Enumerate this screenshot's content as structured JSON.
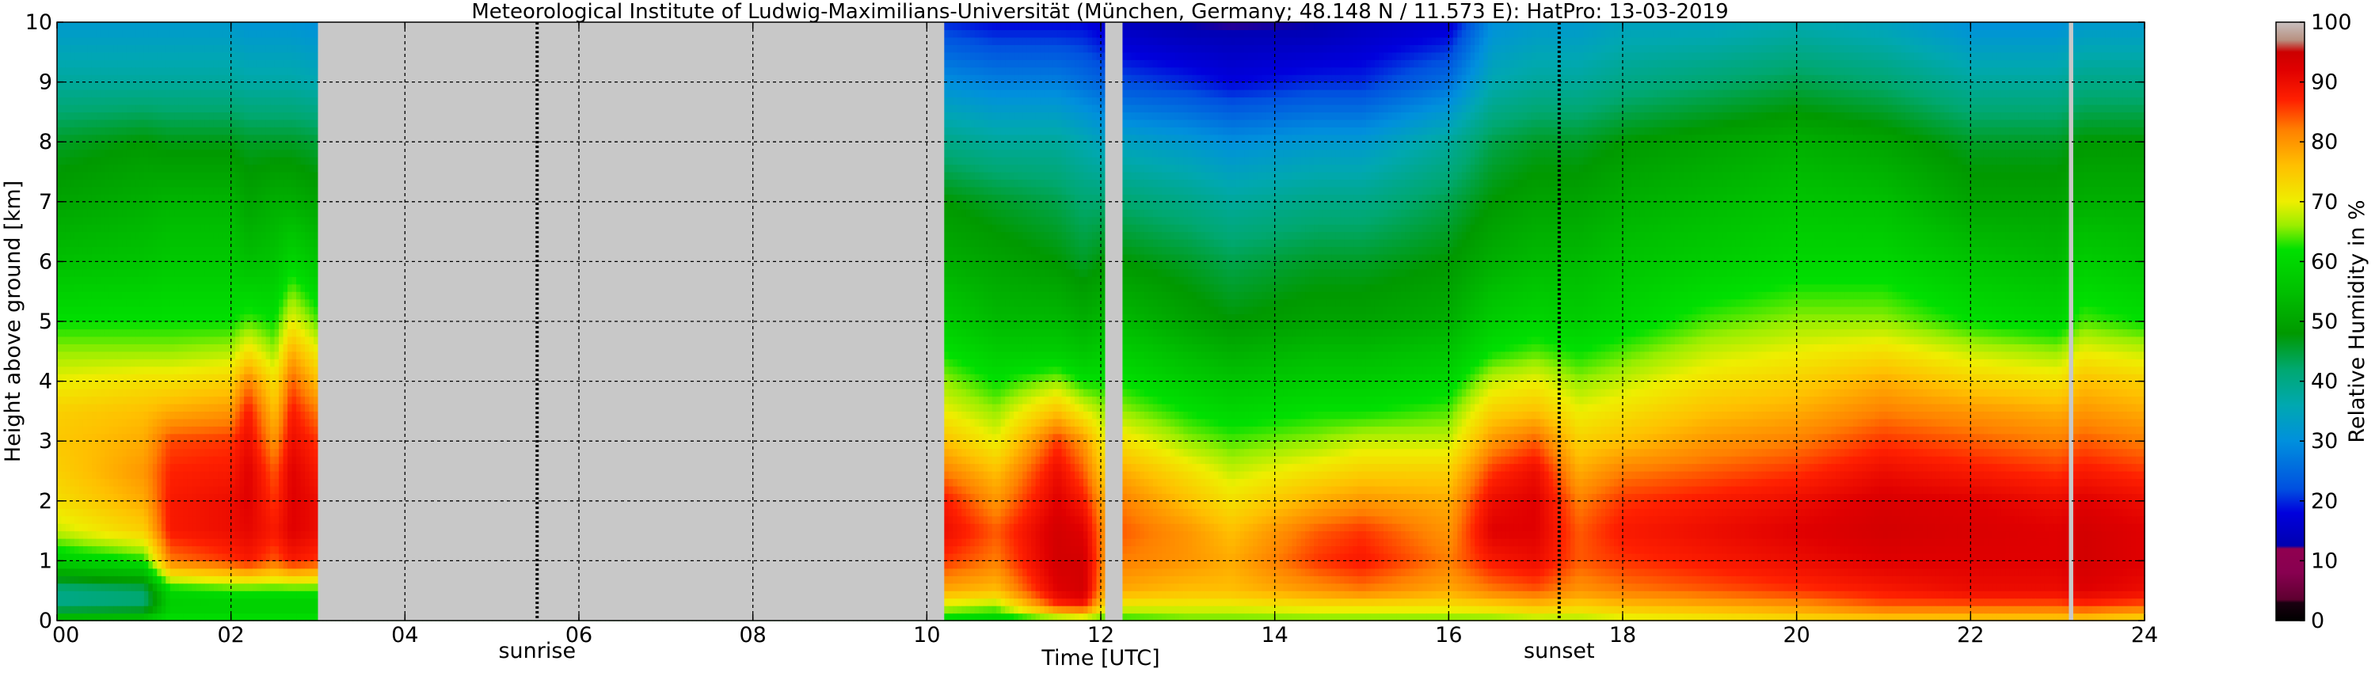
{
  "chart_data": [
    {
      "type": "heatmap",
      "title": "Meteorological Institute of Ludwig-Maximilians-Universität (München, Germany; 48.148 N / 11.573 E):    HatPro: 13-03-2019",
      "xlabel": "Time [UTC]",
      "ylabel": "Height above ground [km]",
      "xlim": [
        0,
        24
      ],
      "ylim": [
        0,
        10
      ],
      "x_ticks": [
        0,
        2,
        4,
        6,
        8,
        10,
        12,
        14,
        16,
        18,
        20,
        22,
        24
      ],
      "x_tick_labels": [
        "00",
        "02",
        "04",
        "06",
        "08",
        "10",
        "12",
        "14",
        "16",
        "18",
        "20",
        "22",
        "24"
      ],
      "y_ticks": [
        0,
        1,
        2,
        3,
        4,
        5,
        6,
        7,
        8,
        9,
        10
      ],
      "y_tick_labels": [
        "0",
        "1",
        "2",
        "3",
        "4",
        "5",
        "6",
        "7",
        "8",
        "9",
        "10"
      ],
      "grid": true,
      "annotations": [
        {
          "text": "sunrise",
          "x": 5.52
        },
        {
          "text": "sunset",
          "x": 17.27
        }
      ],
      "missing_data_color": "#c8c8c8",
      "missing_intervals": [
        [
          3.0,
          10.2
        ],
        [
          12.05,
          12.25
        ],
        [
          23.13,
          23.18
        ]
      ],
      "height_levels_km": [
        0,
        0.25,
        0.5,
        1,
        1.5,
        2,
        2.5,
        3,
        3.5,
        4,
        4.5,
        5,
        6,
        7,
        8,
        9,
        10
      ],
      "profiles": [
        {
          "x": 0.0,
          "rh": [
            58,
            40,
            40,
            58,
            68,
            72,
            74,
            75,
            74,
            70,
            66,
            62,
            55,
            50,
            46,
            38,
            32
          ]
        },
        {
          "x": 1.0,
          "rh": [
            58,
            42,
            42,
            62,
            74,
            78,
            80,
            78,
            76,
            72,
            66,
            62,
            56,
            52,
            48,
            38,
            32
          ]
        },
        {
          "x": 1.3,
          "rh": [
            62,
            58,
            60,
            82,
            88,
            88,
            87,
            85,
            78,
            72,
            66,
            62,
            57,
            53,
            47,
            38,
            32
          ]
        },
        {
          "x": 2.0,
          "rh": [
            62,
            58,
            62,
            86,
            90,
            90,
            88,
            86,
            80,
            74,
            67,
            62,
            57,
            53,
            47,
            38,
            32
          ]
        },
        {
          "x": 2.2,
          "rh": [
            62,
            58,
            62,
            88,
            91,
            92,
            92,
            90,
            88,
            82,
            72,
            64,
            55,
            50,
            46,
            37,
            31
          ]
        },
        {
          "x": 2.5,
          "rh": [
            62,
            58,
            62,
            84,
            88,
            86,
            84,
            80,
            76,
            72,
            66,
            62,
            56,
            52,
            46,
            37,
            31
          ]
        },
        {
          "x": 2.7,
          "rh": [
            62,
            58,
            62,
            88,
            92,
            92,
            92,
            90,
            88,
            84,
            78,
            70,
            60,
            52,
            46,
            37,
            31
          ]
        },
        {
          "x": 3.0,
          "rh": [
            62,
            58,
            62,
            86,
            90,
            90,
            88,
            86,
            82,
            76,
            70,
            64,
            56,
            50,
            45,
            36,
            30
          ]
        },
        {
          "x": 10.2,
          "rh": [
            60,
            68,
            78,
            86,
            90,
            88,
            82,
            76,
            70,
            66,
            62,
            58,
            52,
            48,
            40,
            30,
            20
          ]
        },
        {
          "x": 10.8,
          "rh": [
            58,
            66,
            76,
            82,
            84,
            80,
            76,
            70,
            66,
            62,
            58,
            54,
            50,
            46,
            38,
            28,
            18
          ]
        },
        {
          "x": 11.5,
          "rh": [
            62,
            86,
            92,
            94,
            94,
            92,
            90,
            86,
            76,
            66,
            58,
            54,
            48,
            44,
            38,
            28,
            18
          ]
        },
        {
          "x": 11.8,
          "rh": [
            64,
            88,
            94,
            94,
            92,
            88,
            84,
            80,
            70,
            62,
            56,
            52,
            46,
            42,
            36,
            26,
            18
          ]
        },
        {
          "x": 12.05,
          "rh": [
            62,
            72,
            78,
            80,
            80,
            78,
            74,
            70,
            66,
            62,
            58,
            54,
            48,
            42,
            34,
            24,
            16
          ]
        },
        {
          "x": 12.25,
          "rh": [
            62,
            70,
            78,
            82,
            84,
            82,
            78,
            72,
            66,
            62,
            58,
            54,
            48,
            42,
            34,
            22,
            14
          ]
        },
        {
          "x": 13.0,
          "rh": [
            64,
            70,
            76,
            80,
            80,
            76,
            72,
            66,
            62,
            58,
            54,
            50,
            46,
            40,
            32,
            20,
            12
          ]
        },
        {
          "x": 13.5,
          "rh": [
            64,
            70,
            76,
            78,
            76,
            72,
            68,
            64,
            60,
            56,
            52,
            48,
            44,
            38,
            30,
            18,
            12
          ]
        },
        {
          "x": 14.5,
          "rh": [
            64,
            72,
            80,
            86,
            84,
            78,
            72,
            66,
            62,
            58,
            54,
            50,
            46,
            40,
            32,
            20,
            12
          ]
        },
        {
          "x": 15.0,
          "rh": [
            64,
            72,
            82,
            88,
            86,
            80,
            74,
            68,
            62,
            58,
            54,
            50,
            46,
            40,
            32,
            20,
            14
          ]
        },
        {
          "x": 16.0,
          "rh": [
            64,
            72,
            78,
            82,
            80,
            78,
            74,
            68,
            64,
            60,
            56,
            52,
            48,
            44,
            38,
            26,
            16
          ]
        },
        {
          "x": 16.5,
          "rh": [
            64,
            74,
            82,
            88,
            92,
            90,
            86,
            80,
            74,
            68,
            62,
            58,
            52,
            48,
            44,
            36,
            30
          ]
        },
        {
          "x": 17.0,
          "rh": [
            66,
            76,
            84,
            90,
            92,
            92,
            90,
            84,
            76,
            70,
            64,
            60,
            54,
            50,
            46,
            38,
            32
          ]
        },
        {
          "x": 17.5,
          "rh": [
            66,
            74,
            80,
            84,
            84,
            82,
            78,
            74,
            70,
            66,
            62,
            58,
            54,
            50,
            46,
            38,
            32
          ]
        },
        {
          "x": 18.0,
          "rh": [
            68,
            76,
            82,
            86,
            88,
            86,
            82,
            76,
            72,
            68,
            64,
            60,
            56,
            52,
            48,
            40,
            34
          ]
        },
        {
          "x": 19.0,
          "rh": [
            70,
            78,
            84,
            88,
            90,
            88,
            84,
            80,
            76,
            72,
            68,
            64,
            58,
            54,
            50,
            42,
            34
          ]
        },
        {
          "x": 20.0,
          "rh": [
            72,
            80,
            86,
            90,
            92,
            90,
            86,
            82,
            78,
            74,
            70,
            66,
            60,
            56,
            52,
            44,
            36
          ]
        },
        {
          "x": 21.0,
          "rh": [
            74,
            84,
            88,
            92,
            94,
            93,
            90,
            86,
            82,
            78,
            72,
            66,
            60,
            55,
            50,
            42,
            34
          ]
        },
        {
          "x": 22.0,
          "rh": [
            74,
            84,
            90,
            92,
            93,
            92,
            88,
            84,
            80,
            74,
            68,
            62,
            56,
            50,
            46,
            38,
            30
          ]
        },
        {
          "x": 23.0,
          "rh": [
            74,
            84,
            90,
            92,
            92,
            90,
            86,
            82,
            78,
            72,
            66,
            60,
            54,
            50,
            46,
            38,
            30
          ]
        },
        {
          "x": 23.3,
          "rh": [
            74,
            86,
            92,
            94,
            94,
            92,
            88,
            84,
            80,
            76,
            70,
            64,
            58,
            52,
            48,
            40,
            32
          ]
        },
        {
          "x": 24.0,
          "rh": [
            72,
            84,
            90,
            92,
            92,
            90,
            86,
            82,
            78,
            74,
            68,
            62,
            56,
            52,
            48,
            40,
            32
          ]
        }
      ]
    },
    {
      "type": "colorbar",
      "label": "Relative Humidity in %",
      "range": [
        0,
        100
      ],
      "ticks": [
        0,
        10,
        20,
        30,
        40,
        50,
        60,
        70,
        80,
        90,
        100
      ],
      "colormap_stops": [
        {
          "v": 0,
          "color": "#000000"
        },
        {
          "v": 3,
          "color": "#1a0010"
        },
        {
          "v": 3.5,
          "color": "#5e0030"
        },
        {
          "v": 8,
          "color": "#880050"
        },
        {
          "v": 12,
          "color": "#900050"
        },
        {
          "v": 12.5,
          "color": "#0000b0"
        },
        {
          "v": 18,
          "color": "#0000dd"
        },
        {
          "v": 22,
          "color": "#0050e0"
        },
        {
          "v": 30,
          "color": "#0090dd"
        },
        {
          "v": 36,
          "color": "#00a8b0"
        },
        {
          "v": 42,
          "color": "#00a870"
        },
        {
          "v": 48,
          "color": "#009900"
        },
        {
          "v": 55,
          "color": "#00c000"
        },
        {
          "v": 62,
          "color": "#00e000"
        },
        {
          "v": 66,
          "color": "#99ee00"
        },
        {
          "v": 70,
          "color": "#eeee00"
        },
        {
          "v": 76,
          "color": "#ffc000"
        },
        {
          "v": 82,
          "color": "#ff8000"
        },
        {
          "v": 87,
          "color": "#ff2000"
        },
        {
          "v": 92,
          "color": "#e00000"
        },
        {
          "v": 95,
          "color": "#cc0000"
        },
        {
          "v": 97,
          "color": "#b89080"
        },
        {
          "v": 100,
          "color": "#c8c0c0"
        }
      ]
    }
  ]
}
